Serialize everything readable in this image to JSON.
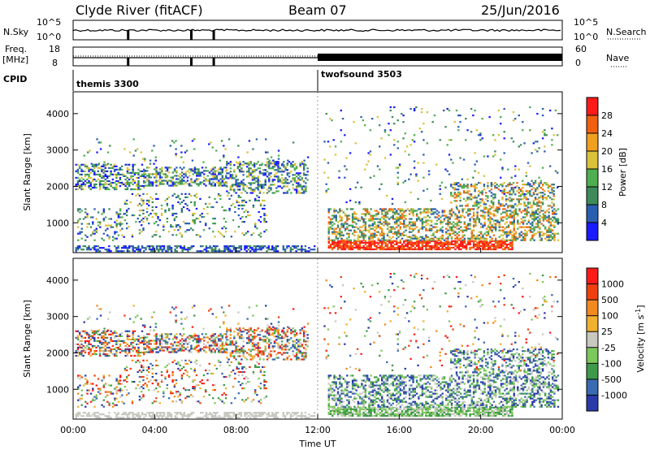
{
  "header": {
    "title": "Clyde River (fitACF)",
    "beam": "Beam 07",
    "date": "25/Jun/2016"
  },
  "colors": {
    "power": [
      "#1a1aff",
      "#2a5fb0",
      "#3e8a5a",
      "#4fae50",
      "#d9c23a",
      "#f0a020",
      "#f06010",
      "#ff1a1a"
    ],
    "velocity": [
      "#ff1a1a",
      "#f04010",
      "#f08a20",
      "#f0b030",
      "#c8c8c0",
      "#7cc85a",
      "#3e9a4a",
      "#3a6ab0",
      "#2a3aa8"
    ]
  },
  "chart_data": [
    {
      "type": "line",
      "title": "N.Sky / N.Search",
      "left_label": "N.Sky",
      "right_label": "N.Search",
      "left_ticks": [
        "10^5",
        "10^0"
      ],
      "right_ticks": [
        "10^5",
        "10^0"
      ],
      "x": [
        "00:00",
        "24:00"
      ],
      "note_markers_hours": [
        2.7,
        5.8,
        6.9
      ]
    },
    {
      "type": "line",
      "left_label_top": "Freq.",
      "left_label_bottom": "[MHz]",
      "right_label": "Nave",
      "left_ticks": [
        "18",
        "8"
      ],
      "right_ticks": [
        "60",
        "0"
      ]
    },
    {
      "type": "table",
      "label": "CPID",
      "programs": [
        {
          "name": "themis 3300",
          "start_hour": 0
        },
        {
          "name": "twofsound 3503",
          "start_hour": 12
        }
      ]
    },
    {
      "type": "heatmap",
      "ylabel": "Slant Range [km]",
      "yticks": [
        1000,
        2000,
        3000,
        4000
      ],
      "ylim": [
        180,
        4600
      ],
      "xlim": [
        0,
        24
      ],
      "colorbar_label": "Power [dB]",
      "colorbar_ticks": [
        "4",
        "8",
        "12",
        "16",
        "20",
        "24",
        "28"
      ]
    },
    {
      "type": "heatmap",
      "ylabel": "Slant Range [km]",
      "yticks": [
        1000,
        2000,
        3000,
        4000
      ],
      "ylim": [
        180,
        4600
      ],
      "xlim": [
        0,
        24
      ],
      "xlabel": "Time UT",
      "xticks": [
        "00:00",
        "04:00",
        "08:00",
        "12:00",
        "16:00",
        "20:00",
        "00:00"
      ],
      "colorbar_label": "Velocity [m s",
      "colorbar_label_sup": "-1",
      "colorbar_label_end": "]",
      "colorbar_ticks": [
        "1000",
        "500",
        "100",
        "25",
        "-25",
        "-100",
        "-500",
        "-1000"
      ]
    }
  ]
}
